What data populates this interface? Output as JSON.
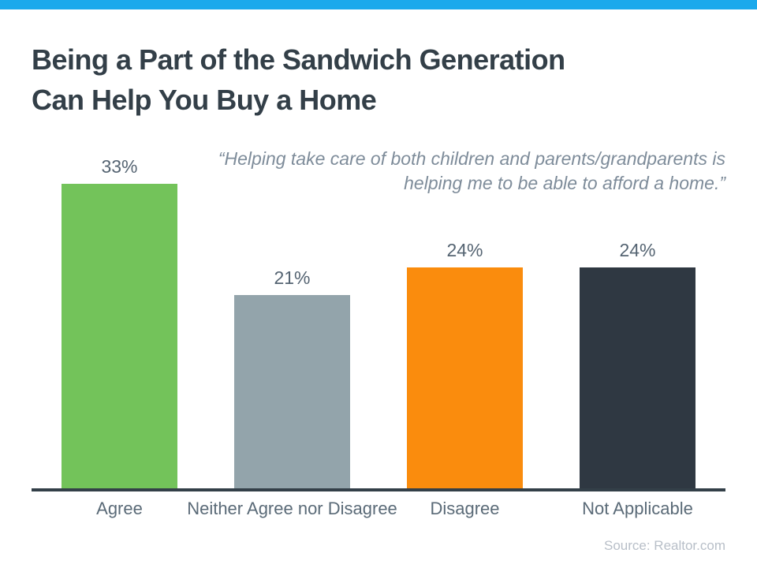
{
  "page": {
    "title_line1": "Being a Part of the Sandwich Generation",
    "title_line2": "Can Help You Buy a Home",
    "quote_line1": "“Helping take care of both children and parents/grandparents is",
    "quote_line2": "helping me to be able to afford a home.”",
    "source": "Source: Realtor.com"
  },
  "colors": {
    "accent_blue": "#1AA9EC",
    "title_text": "#333F48",
    "quote_text": "#7E8C9A",
    "value_label_text": "#556472",
    "category_label_text": "#5A6A77",
    "axis_line": "#333F48",
    "source_text": "#B8BFC8"
  },
  "chart_data": {
    "type": "bar",
    "title": "Being a Part of the Sandwich Generation Can Help You Buy a Home",
    "subtitle_quote": "“Helping take care of both children and parents/grandparents is helping me to be able to afford a home.”",
    "categories": [
      "Agree",
      "Neither Agree nor Disagree",
      "Disagree",
      "Not Applicable"
    ],
    "values": [
      33,
      21,
      24,
      24
    ],
    "value_labels": [
      "33%",
      "21%",
      "24%",
      "24%"
    ],
    "bar_colors": [
      "#73C35A",
      "#93A4AB",
      "#FA8C0D",
      "#2F3842"
    ],
    "unit": "%",
    "ylim": [
      0,
      33
    ],
    "grid": false,
    "legend": false,
    "source": "Source: Realtor.com"
  }
}
